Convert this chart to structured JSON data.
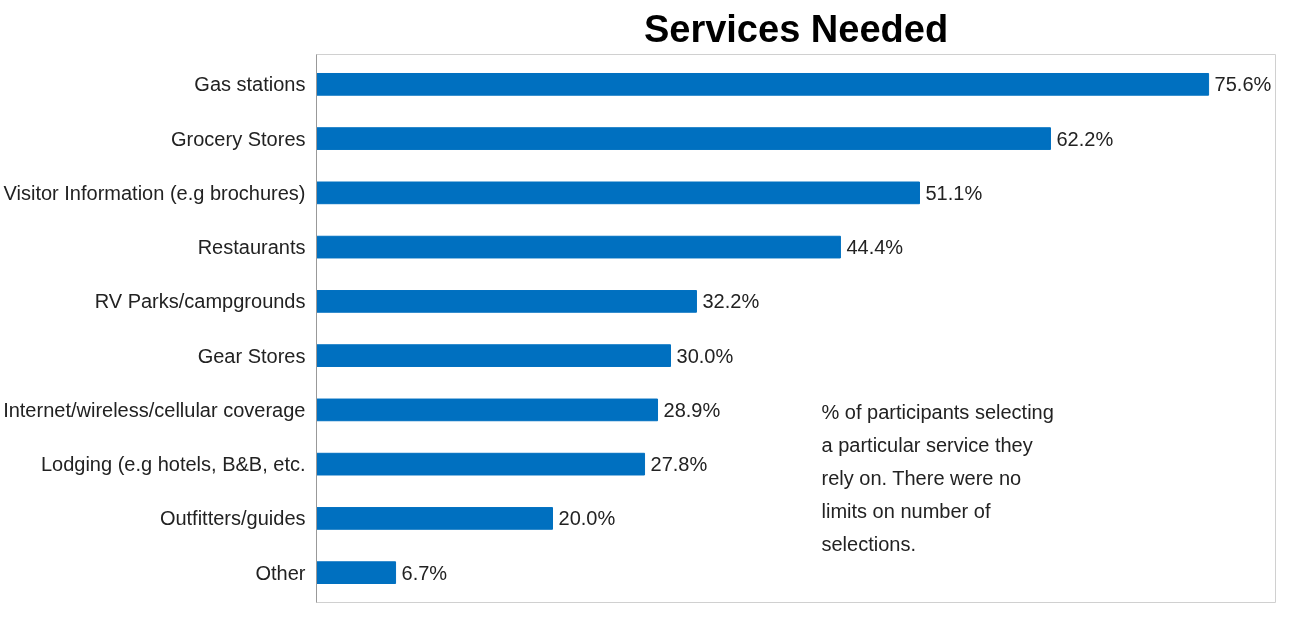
{
  "chart_data": {
    "type": "bar",
    "orientation": "horizontal",
    "title": "Services Needed",
    "categories": [
      "Gas stations",
      "Grocery Stores",
      "Visitor Information (e.g brochures)",
      "Restaurants",
      "RV Parks/campgrounds",
      "Gear Stores",
      "Internet/wireless/cellular coverage",
      "Lodging (e.g hotels, B&B, etc.",
      "Outfitters/guides",
      "Other"
    ],
    "values": [
      75.6,
      62.2,
      51.1,
      44.4,
      32.2,
      30.0,
      28.9,
      27.8,
      20.0,
      6.7
    ],
    "value_labels": [
      "75.6%",
      "62.2%",
      "51.1%",
      "44.4%",
      "32.2%",
      "30.0%",
      "28.9%",
      "27.8%",
      "20.0%",
      "6.7%"
    ],
    "color": "#0070c0",
    "annotations": [
      "% of participants selecting a particular service they rely on. There were no limits on number of selections."
    ]
  }
}
